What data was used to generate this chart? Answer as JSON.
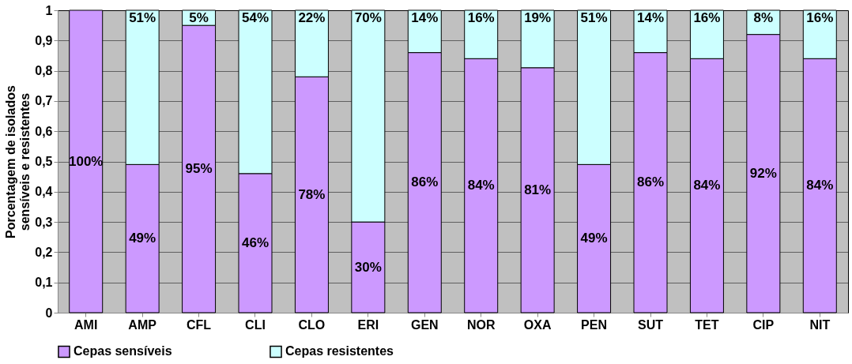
{
  "chart_data": {
    "type": "bar",
    "stacked": true,
    "ylabel": "Porcentagem de isolados\nsensíveis e resistentes",
    "categories": [
      "AMI",
      "AMP",
      "CFL",
      "CLI",
      "CLO",
      "ERI",
      "GEN",
      "NOR",
      "OXA",
      "PEN",
      "SUT",
      "TET",
      "CIP",
      "NIT"
    ],
    "series": [
      {
        "name": "Cepas sensíveis",
        "color": "#cc99ff",
        "values": [
          1.0,
          0.49,
          0.95,
          0.46,
          0.78,
          0.3,
          0.86,
          0.84,
          0.81,
          0.49,
          0.86,
          0.84,
          0.92,
          0.84
        ],
        "value_labels": [
          "100%",
          "49%",
          "95%",
          "46%",
          "78%",
          "30%",
          "86%",
          "84%",
          "81%",
          "49%",
          "86%",
          "84%",
          "92%",
          "84%"
        ]
      },
      {
        "name": "Cepas resistentes",
        "color": "#ccffff",
        "values": [
          null,
          0.51,
          0.05,
          0.54,
          0.22,
          0.7,
          0.14,
          0.16,
          0.19,
          0.51,
          0.14,
          0.16,
          0.08,
          0.16
        ],
        "value_labels": [
          null,
          "51%",
          "5%",
          "54%",
          "22%",
          "70%",
          "14%",
          "16%",
          "19%",
          "51%",
          "14%",
          "16%",
          "8%",
          "16%"
        ]
      }
    ],
    "ylim": [
      0,
      1
    ],
    "yticks": [
      0,
      {
        "value": 0.1,
        "label": "0,1"
      },
      {
        "value": 0.2,
        "label": "0,2"
      },
      {
        "value": 0.3,
        "label": "0,3"
      },
      {
        "value": 0.4,
        "label": "0,4"
      },
      {
        "value": 0.5,
        "label": "0,5"
      },
      {
        "value": 0.6,
        "label": "0,6"
      },
      {
        "value": 0.7,
        "label": "0,7"
      },
      {
        "value": 0.8,
        "label": "0,8"
      },
      {
        "value": 0.9,
        "label": "0,9"
      },
      1
    ],
    "grid": "y",
    "legend": "bottom"
  }
}
